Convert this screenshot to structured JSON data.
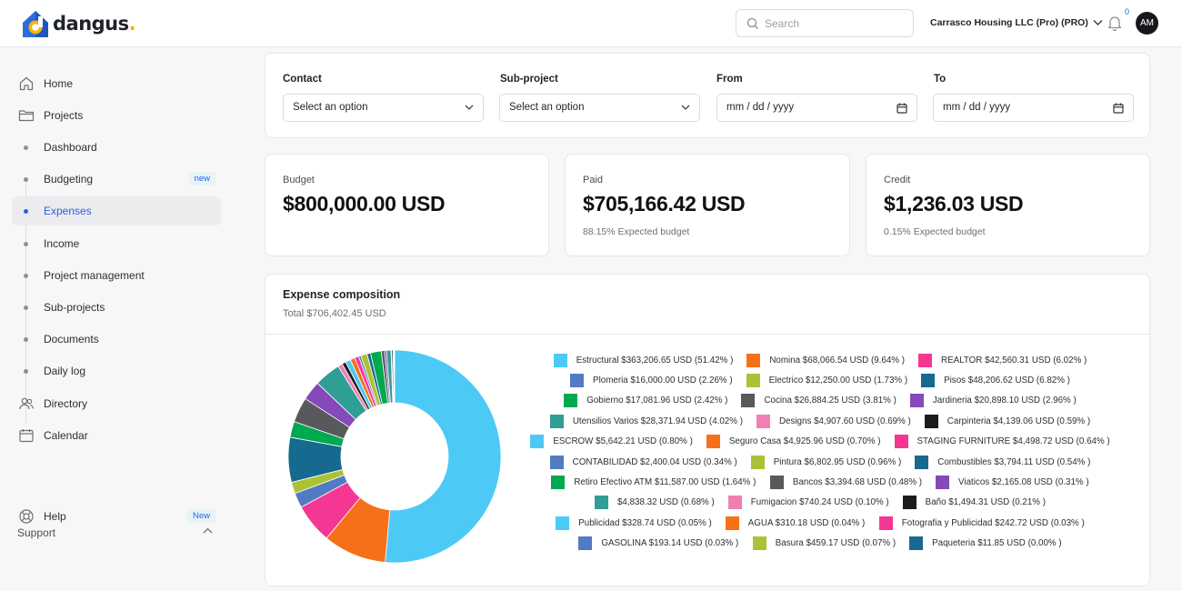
{
  "brand": {
    "name": "dangus",
    "dot": "."
  },
  "header": {
    "search_placeholder": "Search",
    "account": "Carrasco Housing LLC (Pro) (PRO)",
    "notifications": "0",
    "avatar_initials": "AM"
  },
  "sidebar": {
    "items": [
      {
        "label": "Home",
        "icon": "home-icon",
        "kind": "top"
      },
      {
        "label": "Projects",
        "icon": "folder-icon",
        "kind": "top"
      },
      {
        "label": "Dashboard",
        "kind": "sub"
      },
      {
        "label": "Budgeting",
        "kind": "sub",
        "badge": "new"
      },
      {
        "label": "Expenses",
        "kind": "sub",
        "active": true
      },
      {
        "label": "Income",
        "kind": "sub"
      },
      {
        "label": "Project management",
        "kind": "sub"
      },
      {
        "label": "Sub-projects",
        "kind": "sub"
      },
      {
        "label": "Documents",
        "kind": "sub"
      },
      {
        "label": "Daily log",
        "kind": "sub"
      },
      {
        "label": "Directory",
        "icon": "users-icon",
        "kind": "top"
      },
      {
        "label": "Calendar",
        "icon": "calendar-icon",
        "kind": "top"
      }
    ],
    "support_label": "Support",
    "help": {
      "label": "Help",
      "badge": "New",
      "icon": "help-icon"
    }
  },
  "filters": {
    "contact": {
      "label": "Contact",
      "value": "Select an option"
    },
    "subproject": {
      "label": "Sub-project",
      "value": "Select an option"
    },
    "from": {
      "label": "From",
      "value": "mm / dd / yyyy"
    },
    "to": {
      "label": "To",
      "value": "mm / dd / yyyy"
    }
  },
  "stats": {
    "budget": {
      "label": "Budget",
      "value": "$800,000.00 USD"
    },
    "paid": {
      "label": "Paid",
      "value": "$705,166.42 USD",
      "sub": "88.15% Expected budget"
    },
    "credit": {
      "label": "Credit",
      "value": "$1,236.03 USD",
      "sub": "0.15% Expected budget"
    }
  },
  "chart": {
    "title": "Expense composition",
    "total": "Total $706,402.45 USD"
  },
  "chart_data": {
    "type": "pie",
    "title": "Expense composition",
    "subtitle": "Total $706,402.45 USD",
    "legend_placement": "right",
    "slices": [
      {
        "label": "Estructural $363,206.65 USD (51.42% )",
        "name": "Estructural",
        "value": 363206.65,
        "color": "#4dc9f6"
      },
      {
        "label": "Nomina $68,066.54 USD (9.64% )",
        "name": "Nomina",
        "value": 68066.54,
        "color": "#f67019"
      },
      {
        "label": "REALTOR $42,560.31 USD (6.02% )",
        "name": "REALTOR",
        "value": 42560.31,
        "color": "#f53794"
      },
      {
        "label": "Plomeria $16,000.00 USD (2.26% )",
        "name": "Plomeria",
        "value": 16000.0,
        "color": "#537bc4"
      },
      {
        "label": "Electrico $12,250.00 USD (1.73% )",
        "name": "Electrico",
        "value": 12250.0,
        "color": "#acc236"
      },
      {
        "label": "Pisos $48,206.62 USD (6.82% )",
        "name": "Pisos",
        "value": 48206.62,
        "color": "#166a8f"
      },
      {
        "label": "Gobierno $17,081.96 USD (2.42% )",
        "name": "Gobierno",
        "value": 17081.96,
        "color": "#00a950"
      },
      {
        "label": "Cocina $26,884.25 USD (3.81% )",
        "name": "Cocina",
        "value": 26884.25,
        "color": "#58595b"
      },
      {
        "label": "Jardineria $20,898.10 USD (2.96% )",
        "name": "Jardineria",
        "value": 20898.1,
        "color": "#8549ba"
      },
      {
        "label": "Utensilios Varios $28,371.94 USD (4.02% )",
        "name": "Utensilios Varios",
        "value": 28371.94,
        "color": "#2f9e95"
      },
      {
        "label": "Designs $4,907.60 USD (0.69% )",
        "name": "Designs",
        "value": 4907.6,
        "color": "#f07fb2"
      },
      {
        "label": "Carpinteria $4,139.06 USD (0.59% )",
        "name": "Carpinteria",
        "value": 4139.06,
        "color": "#1c1c1c"
      },
      {
        "label": "ESCROW $5,642.21 USD (0.80% )",
        "name": "ESCROW",
        "value": 5642.21,
        "color": "#4dc9f6"
      },
      {
        "label": "Seguro Casa $4,925.96 USD (0.70% )",
        "name": "Seguro Casa",
        "value": 4925.96,
        "color": "#f67019"
      },
      {
        "label": "STAGING FURNITURE $4,498.72 USD (0.64% )",
        "name": "STAGING FURNITURE",
        "value": 4498.72,
        "color": "#f53794"
      },
      {
        "label": "CONTABILIDAD $2,400.04 USD (0.34% )",
        "name": "CONTABILIDAD",
        "value": 2400.04,
        "color": "#537bc4"
      },
      {
        "label": "Pintura $6,802.95 USD (0.96% )",
        "name": "Pintura",
        "value": 6802.95,
        "color": "#acc236"
      },
      {
        "label": "Combustibles $3,794.11 USD (0.54% )",
        "name": "Combustibles",
        "value": 3794.11,
        "color": "#166a8f"
      },
      {
        "label": "Retiro Efectivo ATM $11,587.00 USD (1.64% )",
        "name": "Retiro Efectivo ATM",
        "value": 11587.0,
        "color": "#00a950"
      },
      {
        "label": "Bancos $3,394.68 USD (0.48% )",
        "name": "Bancos",
        "value": 3394.68,
        "color": "#58595b"
      },
      {
        "label": "Viaticos $2,165.08 USD (0.31% )",
        "name": "Viaticos",
        "value": 2165.08,
        "color": "#8549ba"
      },
      {
        "label": "$4,838.32 USD (0.68% )",
        "name": "",
        "value": 4838.32,
        "color": "#2f9e95"
      },
      {
        "label": "Fumigacion $740.24 USD (0.10% )",
        "name": "Fumigacion",
        "value": 740.24,
        "color": "#f07fb2"
      },
      {
        "label": "Baño $1,494.31 USD (0.21% )",
        "name": "Baño",
        "value": 1494.31,
        "color": "#1c1c1c"
      },
      {
        "label": "Publicidad $328.74 USD (0.05% )",
        "name": "Publicidad",
        "value": 328.74,
        "color": "#4dc9f6"
      },
      {
        "label": "AGUA $310.18 USD (0.04% )",
        "name": "AGUA",
        "value": 310.18,
        "color": "#f67019"
      },
      {
        "label": "Fotografia y Publicidad $242.72 USD (0.03% )",
        "name": "Fotografia y Publicidad",
        "value": 242.72,
        "color": "#f53794"
      },
      {
        "label": "GASOLINA $193.14 USD (0.03% )",
        "name": "GASOLINA",
        "value": 193.14,
        "color": "#537bc4"
      },
      {
        "label": "Basura $459.17 USD (0.07% )",
        "name": "Basura",
        "value": 459.17,
        "color": "#acc236"
      },
      {
        "label": "Paqueteria $11.85 USD (0.00% )",
        "name": "Paqueteria",
        "value": 11.85,
        "color": "#166a8f"
      }
    ]
  }
}
